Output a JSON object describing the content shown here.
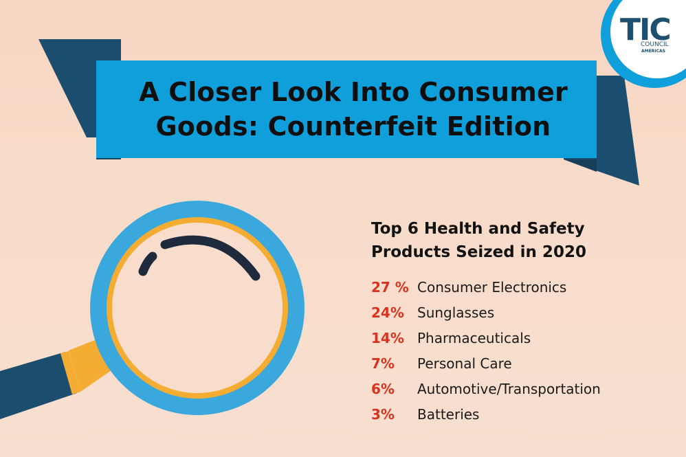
{
  "title": {
    "line1": "A Closer Look Into Consumer",
    "line2": "Goods: Counterfeit Edition"
  },
  "logo": {
    "main": "TIC",
    "line1": "COUNCIL",
    "line2": "AMERICAS"
  },
  "heading": {
    "line1": "Top 6 Health and Safety",
    "line2": "Products Seized in 2020"
  },
  "items": [
    {
      "pct": "27 %",
      "label": "Consumer Electronics"
    },
    {
      "pct": "24%",
      "label": "Sunglasses"
    },
    {
      "pct": "14%",
      "label": "Pharmaceuticals"
    },
    {
      "pct": "7%",
      "label": "Personal Care"
    },
    {
      "pct": "6%",
      "label": "Automotive/Transportation"
    },
    {
      "pct": "3%",
      "label": "Batteries"
    }
  ],
  "colors": {
    "banner_blue": "#0fa0dc",
    "banner_dark": "#1b4e6e",
    "accent_red": "#d9321f",
    "lens_ring": "#3aa8dc",
    "lens_gold": "#f5ac32",
    "background": "#f7d9c6"
  },
  "icons": [
    "magnifying-glass-icon",
    "tic-council-logo"
  ]
}
